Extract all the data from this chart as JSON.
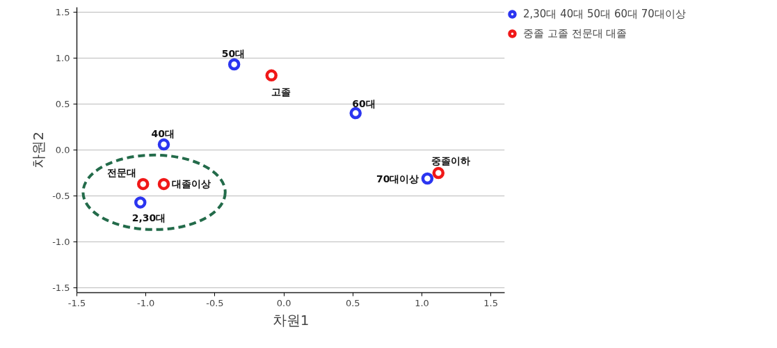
{
  "chart_data": {
    "type": "scatter",
    "xlabel": "차원1",
    "ylabel": "차원2",
    "xlim": [
      -1.5,
      1.6
    ],
    "ylim": [
      -1.55,
      1.55
    ],
    "xticks": [
      -1.5,
      {
        "value": -1,
        "label": "-1.0"
      },
      -0.5,
      {
        "value": 0,
        "label": "0.0"
      },
      0.5,
      {
        "value": 1,
        "label": "1.0"
      },
      1.5
    ],
    "yticks": [
      -1.5,
      {
        "value": -1,
        "label": "-1.0"
      },
      -0.5,
      {
        "value": 0,
        "label": "0.0"
      },
      0.5,
      {
        "value": 1,
        "label": "1.0"
      },
      1.5
    ],
    "grid": "y",
    "legend": "right",
    "marker": "circle",
    "series": [
      {
        "name": "2,30대 40대 50대 60대 70대이상",
        "color": "#2b35f0",
        "x": [
          -1.04,
          -0.87,
          -0.36,
          0.52,
          1.04
        ],
        "values": [
          -0.57,
          0.06,
          0.93,
          0.4,
          -0.31
        ]
      },
      {
        "name": "중졸 고졸 전문대 대졸",
        "color": "#f01818",
        "x": [
          1.12,
          -0.09,
          -1.02,
          -0.87
        ],
        "values": [
          -0.25,
          0.81,
          -0.37,
          -0.37
        ]
      }
    ],
    "annotations": [
      {
        "text": "2,30대",
        "x": -1.04,
        "y": -0.57
      },
      {
        "text": "40대",
        "x": -0.87,
        "y": 0.06
      },
      {
        "text": "50대",
        "x": -0.36,
        "y": 0.93
      },
      {
        "text": "60대",
        "x": 0.52,
        "y": 0.4
      },
      {
        "text": "70대이상",
        "x": 1.04,
        "y": -0.31
      },
      {
        "text": "중졸이하",
        "x": 1.12,
        "y": -0.25
      },
      {
        "text": "고졸",
        "x": -0.09,
        "y": 0.81
      },
      {
        "text": "전문대",
        "x": -1.02,
        "y": -0.37
      },
      {
        "text": "대졸이상",
        "x": -0.87,
        "y": -0.37
      }
    ]
  }
}
